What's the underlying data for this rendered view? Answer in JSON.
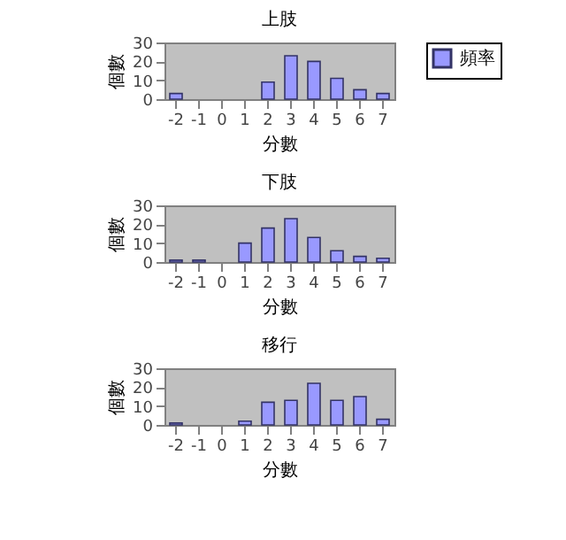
{
  "chart_data": [
    {
      "type": "bar",
      "title": "上肢",
      "xlabel": "分數",
      "ylabel": "個數",
      "categories": [
        "-2",
        "-1",
        "0",
        "1",
        "2",
        "3",
        "4",
        "5",
        "6",
        "7"
      ],
      "ylim": [
        0,
        30
      ],
      "yticks": [
        0,
        10,
        20,
        30
      ],
      "legend": "right",
      "series": [
        {
          "name": "頻率",
          "color": "#9999ff",
          "values": [
            3,
            0,
            0,
            0,
            9,
            23,
            20,
            11,
            5,
            3
          ]
        }
      ]
    },
    {
      "type": "bar",
      "title": "下肢",
      "xlabel": "分數",
      "ylabel": "個數",
      "categories": [
        "-2",
        "-1",
        "0",
        "1",
        "2",
        "3",
        "4",
        "5",
        "6",
        "7"
      ],
      "ylim": [
        0,
        30
      ],
      "yticks": [
        0,
        10,
        20,
        30
      ],
      "series": [
        {
          "color": "#9999ff",
          "values": [
            1,
            1,
            0,
            10,
            18,
            23,
            13,
            6,
            3,
            2
          ]
        }
      ]
    },
    {
      "type": "bar",
      "title": "移行",
      "xlabel": "分數",
      "ylabel": "個數",
      "categories": [
        "-2",
        "-1",
        "0",
        "1",
        "2",
        "3",
        "4",
        "5",
        "6",
        "7"
      ],
      "ylim": [
        0,
        30
      ],
      "yticks": [
        0,
        10,
        20,
        30
      ],
      "series": [
        {
          "color": "#9999ff",
          "values": [
            1,
            0,
            0,
            2,
            12,
            13,
            22,
            13,
            15,
            3
          ]
        }
      ]
    }
  ]
}
